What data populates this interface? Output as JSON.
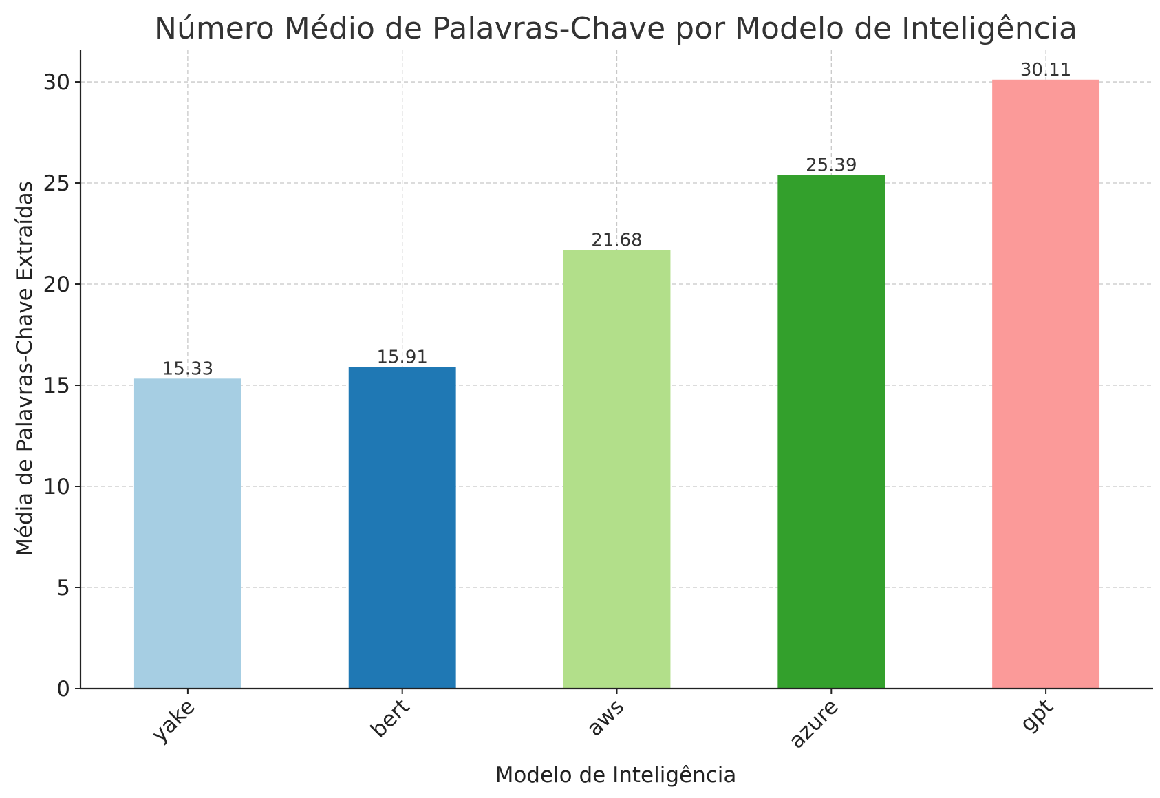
{
  "chart_data": {
    "type": "bar",
    "title": "Número Médio de Palavras-Chave por Modelo de Inteligência",
    "xlabel": "Modelo de Inteligência",
    "ylabel": "Média de Palavras-Chave Extraídas",
    "categories": [
      "yake",
      "bert",
      "aws",
      "azure",
      "gpt"
    ],
    "values": [
      15.33,
      15.91,
      21.68,
      25.39,
      30.11
    ],
    "value_labels": [
      "15.33",
      "15.91",
      "21.68",
      "25.39",
      "30.11"
    ],
    "colors": [
      "#a6cee3",
      "#1f78b4",
      "#b2df8a",
      "#33a02c",
      "#fb9a99"
    ],
    "ylim": [
      0,
      31.6
    ],
    "yticks": [
      0,
      5,
      10,
      15,
      20,
      25,
      30
    ],
    "grid": true,
    "legend": "none"
  }
}
